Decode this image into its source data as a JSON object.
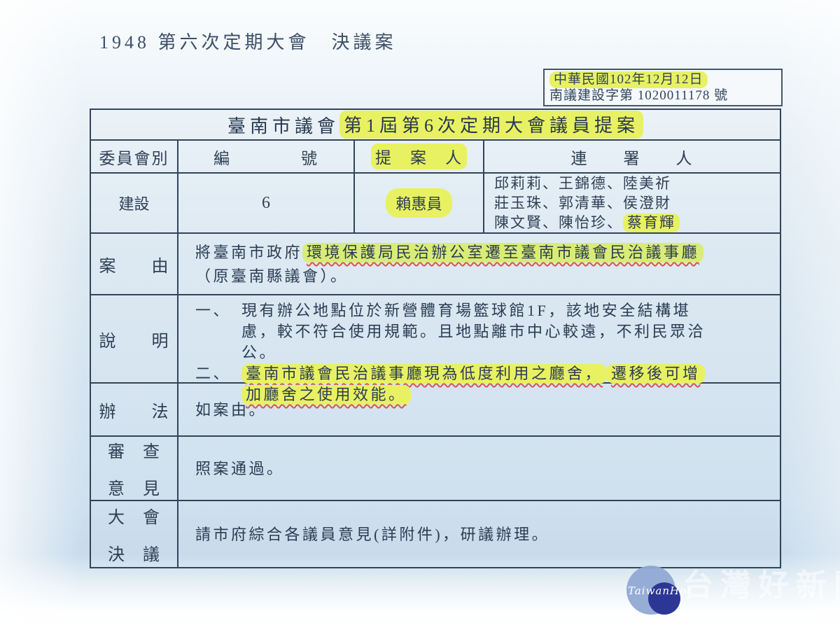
{
  "page": {
    "header_title": "1948 第六次定期大會　決議案",
    "date_box": {
      "line1": "中華民國102年12月12日",
      "line2": "南議建設字第 1020011178 號"
    }
  },
  "table": {
    "title": {
      "prefix": "臺南市議會",
      "highlighted": "第1屆第6次定期大會議員提案"
    },
    "headers": {
      "committee": "委員會別",
      "number": "編　　　　號",
      "proposer": "提　案　人",
      "cosigners": "連　　署　　人"
    },
    "proposal": {
      "committee": "建設",
      "number": "6",
      "proposer": "賴惠員",
      "cosigners_line1": "邱莉莉、王錦德、陸美祈",
      "cosigners_line2": "莊玉珠、郭清華、侯澄財",
      "cosigners_line3_prefix": "陳文賢、陳怡珍、",
      "cosigners_line3_highlight": "蔡育輝"
    },
    "rows": {
      "case": {
        "label": "案　　由",
        "text_prefix": "將臺南市政府",
        "text_highlight": "環境保護局民治辦公室遷至臺南市議會民治議事廳",
        "text_line2": "（原臺南縣議會）。"
      },
      "explanation": {
        "label": "說　　明",
        "item1_no": "一、",
        "item1_text": "現有辦公地點位於新營體育場籃球館1F，該地安全結構堪慮，較不符合使用規範。且地點離市中心較遠，不利民眾洽公。",
        "item2_no": "二、",
        "item2_highlight1": "臺南市議會民治議事廳現為低度利用之廳舍，",
        "item2_highlight2": "遷移後可增加廳舍之使用效能。"
      },
      "method": {
        "label": "辦　　法",
        "text": "如案由。"
      },
      "review": {
        "label_line1": "審　查",
        "label_line2": "意　見",
        "text": "照案通過。"
      },
      "resolution": {
        "label_line1": "大　會",
        "label_line2": "決　議",
        "text": "請市府綜合各議員意見(詳附件)，研議辦理。"
      }
    }
  },
  "watermark": {
    "logo_text": "TaiwanHot",
    "site_name": "台灣好新聞"
  },
  "colors": {
    "ink": "#2e3e54",
    "table_border": "#33435a",
    "highlight_yellow": "#e8f162",
    "highlight_green": "#d9ec77",
    "underline_red": "#d4574e",
    "scan_blue": "#d5e4f0",
    "watermark_light_blue": "#90a9d4",
    "watermark_dark_blue": "#2c3795"
  }
}
